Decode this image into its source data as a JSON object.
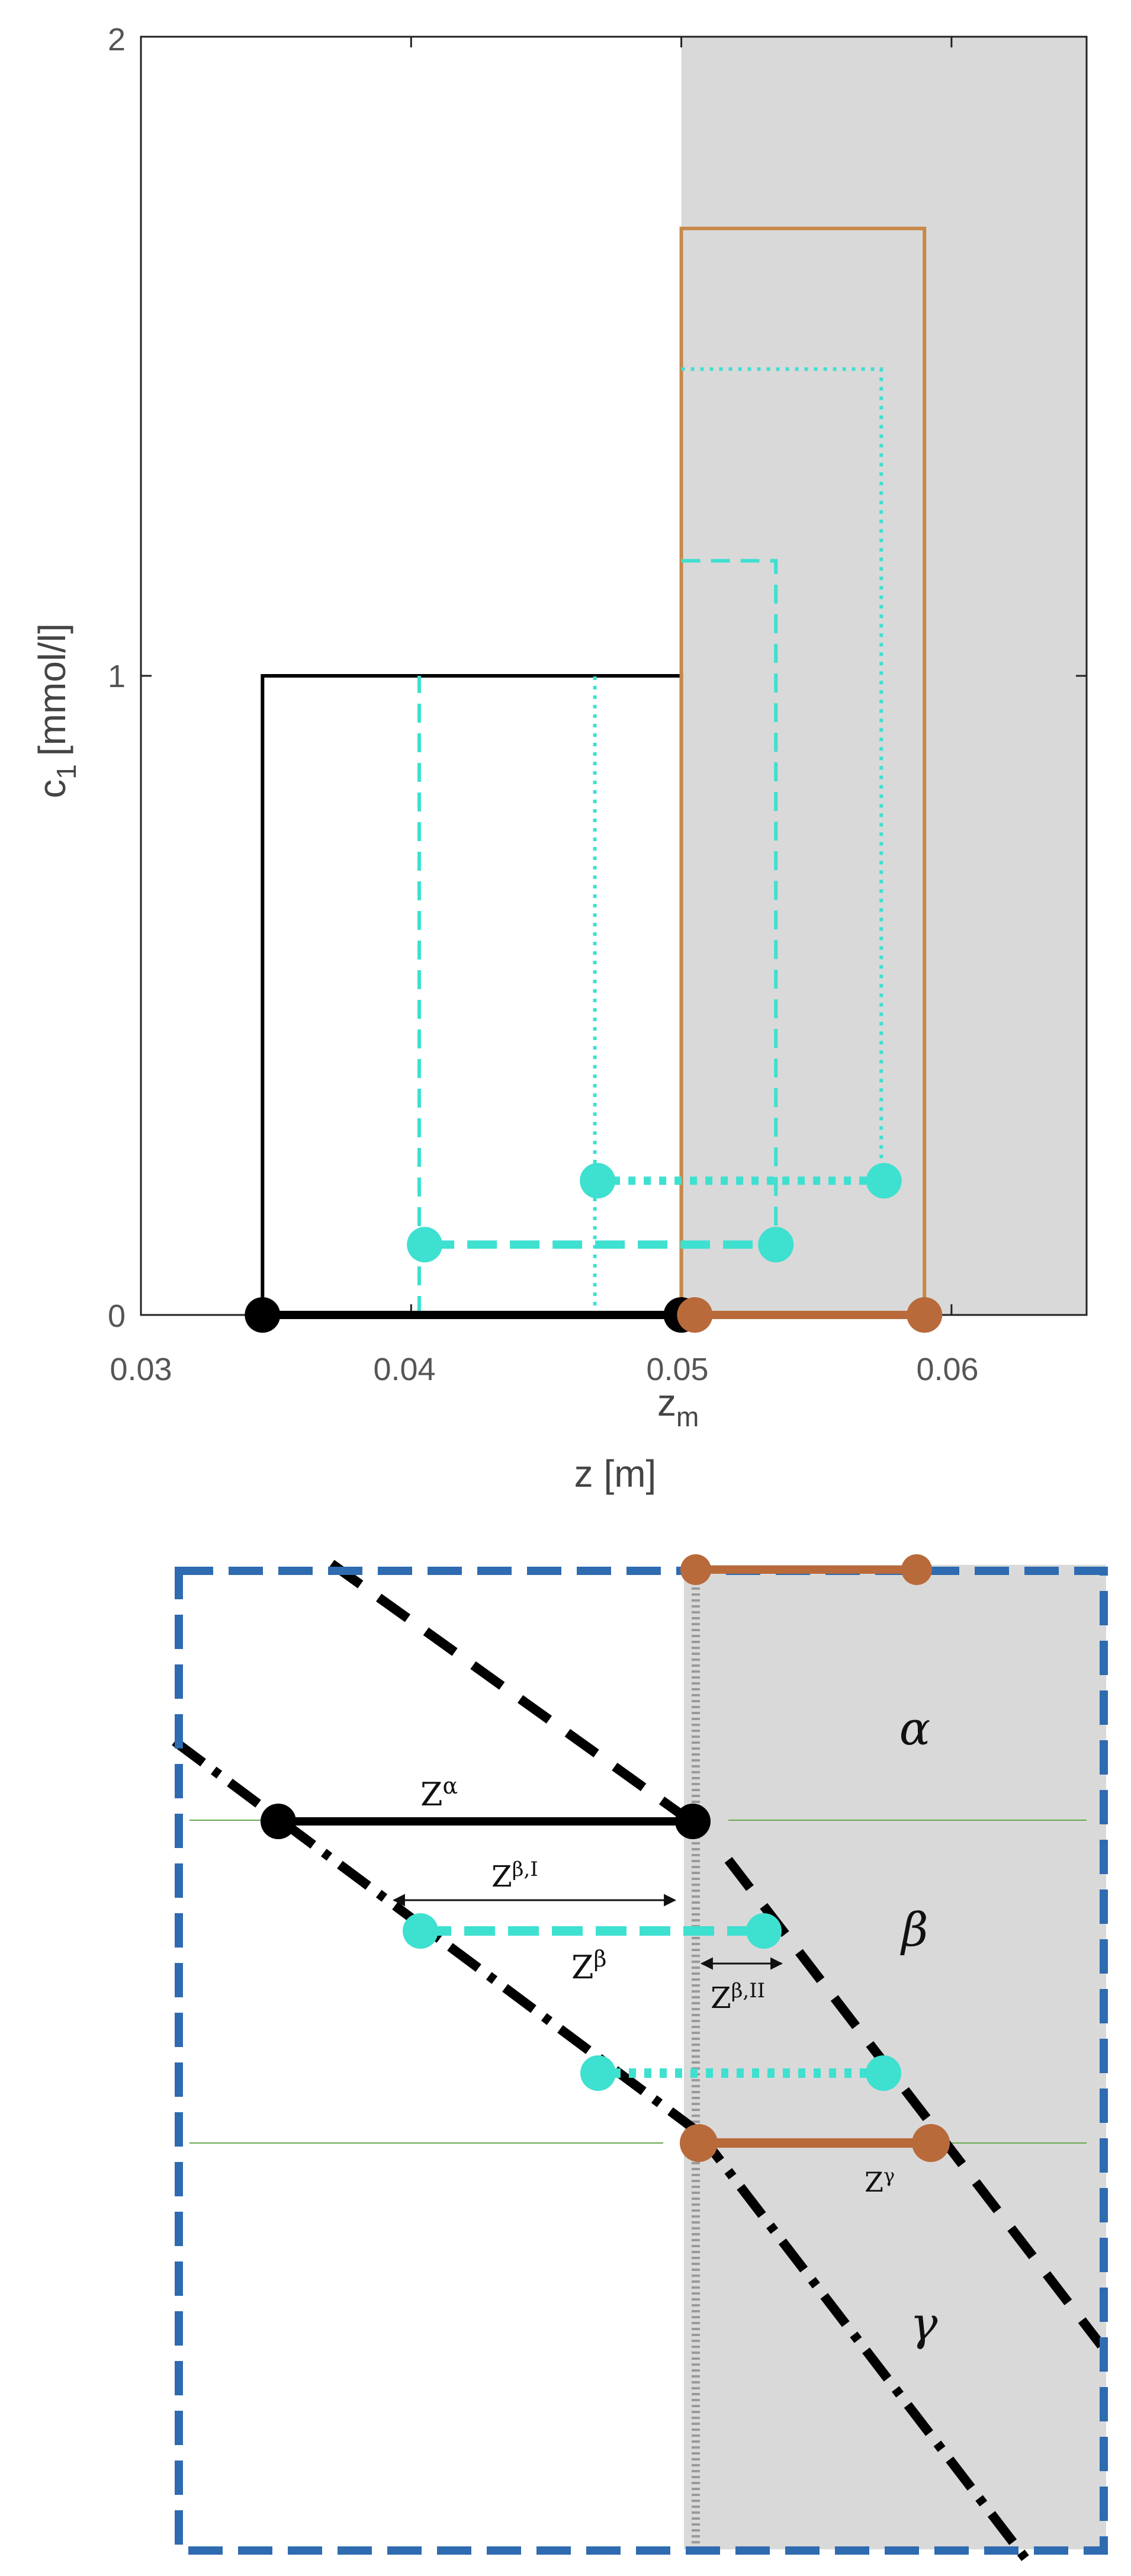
{
  "colors": {
    "black": "#000000",
    "cyan": "#3ee0d0",
    "brown": "#b86a3a",
    "brown_line": "#c8884a",
    "shade": "#d9d9d9",
    "frame_blue": "#2e6bb0",
    "grid_green": "#6aa84f"
  },
  "chart": {
    "ylabel_main": "c",
    "ylabel_sub": "1",
    "ylabel_unit": "[mmol/l]",
    "xlabel": "z [m]",
    "zm_main": "z",
    "zm_sub": "m",
    "x_ticks": [
      "0.03",
      "0.04",
      "0.05",
      "0.06"
    ],
    "y_ticks": [
      "0",
      "1",
      "2"
    ]
  },
  "chart_data": {
    "type": "line",
    "title": "",
    "xlabel": "z [m]",
    "ylabel": "c1 [mmol/l]",
    "xlim": [
      0.03,
      0.065
    ],
    "ylim": [
      0,
      2
    ],
    "shaded_region_x": [
      0.05,
      0.065
    ],
    "series": [
      {
        "style": "solid-black",
        "x": [
          0.0345,
          0.0345,
          0.05,
          0.05
        ],
        "y": [
          0,
          1,
          1,
          0
        ]
      },
      {
        "style": "solid-brown",
        "x": [
          0.05,
          0.05,
          0.059,
          0.059
        ],
        "y": [
          0,
          1.7,
          1.7,
          0
        ]
      },
      {
        "style": "dashed-cyan",
        "x": [
          0.0403,
          0.0403
        ],
        "y": [
          0,
          1
        ]
      },
      {
        "style": "dashed-cyan",
        "x": [
          0.05,
          0.0535,
          0.0535
        ],
        "y": [
          1.18,
          1.18,
          0.1
        ]
      },
      {
        "style": "dotted-cyan",
        "x": [
          0.0468,
          0.0468
        ],
        "y": [
          0,
          1
        ]
      },
      {
        "style": "dotted-cyan",
        "x": [
          0.05,
          0.0574,
          0.0574
        ],
        "y": [
          1.48,
          1.48,
          0.22
        ]
      }
    ],
    "segments": [
      {
        "style": "solid-black",
        "x": [
          0.0345,
          0.05
        ],
        "y": [
          0,
          0
        ]
      },
      {
        "style": "solid-brown",
        "x": [
          0.0505,
          0.059
        ],
        "y": [
          0,
          0
        ]
      },
      {
        "style": "dashed-cyan",
        "x": [
          0.0405,
          0.0535
        ],
        "y": [
          0.11,
          0.11
        ]
      },
      {
        "style": "dotted-cyan",
        "x": [
          0.0469,
          0.0575
        ],
        "y": [
          0.21,
          0.21
        ]
      }
    ]
  },
  "diagram": {
    "phase_alpha": "α",
    "phase_beta": "β",
    "phase_gamma": "γ",
    "z_alpha_base": "Z",
    "z_alpha_sup": "α",
    "z_beta_I_base": "Z",
    "z_beta_I_sup": "β,I",
    "z_beta_base": "Z",
    "z_beta_sup": "β",
    "z_beta_II_base": "Z",
    "z_beta_II_sup": "β,II",
    "z_gamma_base": "Z",
    "z_gamma_sup": "γ"
  }
}
